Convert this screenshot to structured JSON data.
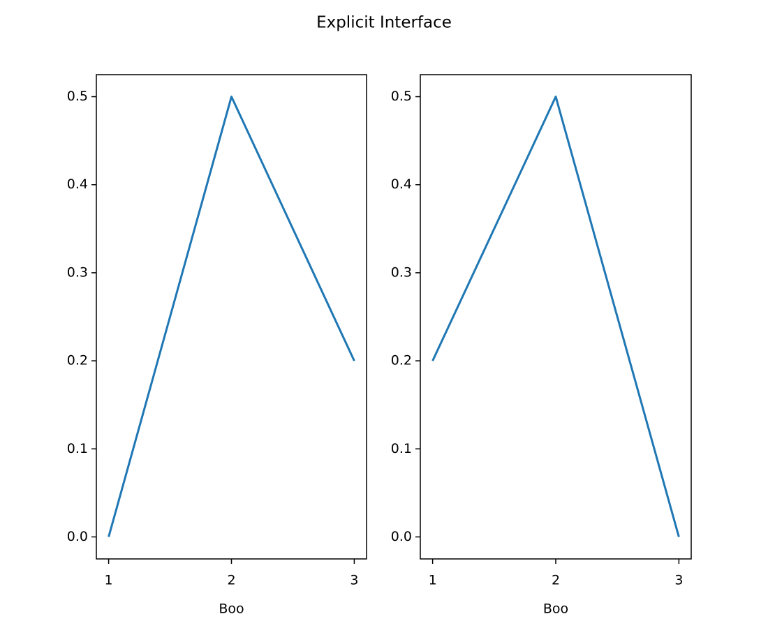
{
  "title": "Explicit Interface",
  "chart_data": [
    {
      "type": "line",
      "x": [
        1,
        2,
        3
      ],
      "values": [
        0,
        0.5,
        0.2
      ],
      "color": "#1f77b4",
      "xlabel": "Boo",
      "xlim": [
        0.9,
        3.1
      ],
      "xticks": [
        1,
        2,
        3
      ],
      "ylim": [
        -0.025,
        0.525
      ],
      "yticks": [
        {
          "value": 0,
          "label": "0.0"
        },
        0.1,
        0.2,
        0.3,
        0.4,
        0.5
      ]
    },
    {
      "type": "line",
      "x": [
        1,
        2,
        3
      ],
      "values": [
        0.2,
        0.5,
        0
      ],
      "color": "#1f77b4",
      "xlabel": "Boo",
      "xlim": [
        0.9,
        3.1
      ],
      "xticks": [
        1,
        2,
        3
      ],
      "ylim": [
        -0.025,
        0.525
      ],
      "yticks": [
        {
          "value": 0,
          "label": "0.0"
        },
        0.1,
        0.2,
        0.3,
        0.4,
        0.5
      ]
    }
  ]
}
